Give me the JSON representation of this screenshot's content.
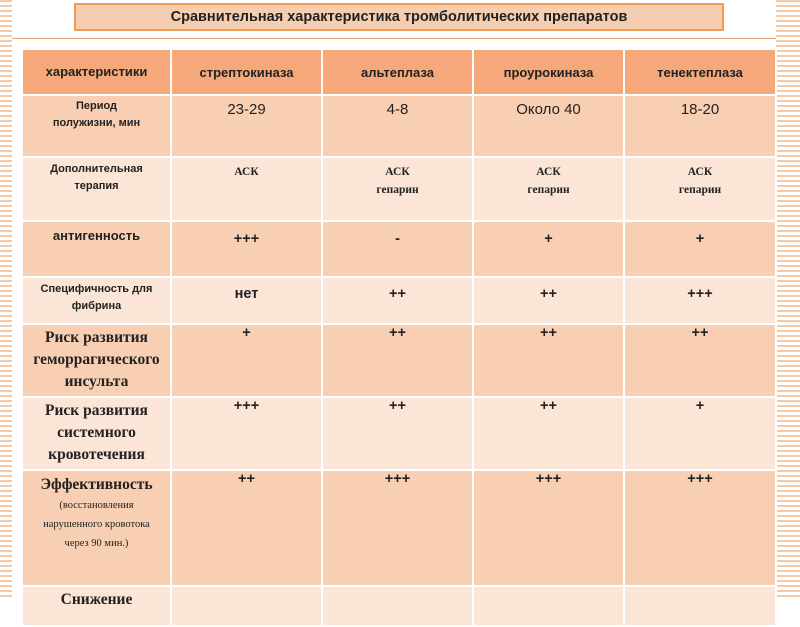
{
  "title": "Сравнительная характеристика тромболитических препаратов",
  "table": {
    "headers": [
      "характеристики",
      "стрептокиназа",
      "альтеплаза",
      "проурокиназа",
      "тенектеплаза"
    ],
    "rows": [
      {
        "label": "Период полужизни, мин",
        "values": [
          "23-29",
          "4-8",
          "Около 40",
          "18-20"
        ]
      },
      {
        "label": "Дополнительная терапия",
        "values": [
          [
            "АСК"
          ],
          [
            "АСК",
            "гепарин"
          ],
          [
            "АСК",
            "гепарин"
          ],
          [
            "АСК",
            "гепарин"
          ]
        ]
      },
      {
        "label": "антигенность",
        "values": [
          "+++",
          "-",
          "+",
          "+"
        ]
      },
      {
        "label": "Специфичность для фибрина",
        "values": [
          "нет",
          "++",
          "++",
          "+++"
        ]
      },
      {
        "label": "Риск развития геморрагического инсульта",
        "values": [
          "+",
          "++",
          "++",
          "++"
        ]
      },
      {
        "label": "Риск развития системного кровотечения",
        "values": [
          "+++",
          "++",
          "++",
          "+"
        ]
      },
      {
        "label": "Эффективность",
        "note": "(восстановления нарушенного кровотока через 90 мин.)",
        "values": [
          "++",
          "+++",
          "+++",
          "+++"
        ]
      },
      {
        "label": "Снижение",
        "values": [
          "",
          "",
          "",
          ""
        ]
      }
    ]
  }
}
